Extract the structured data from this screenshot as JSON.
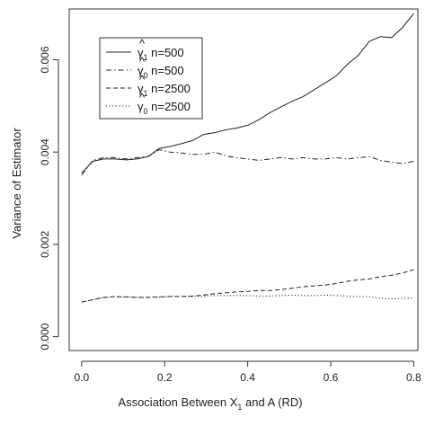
{
  "chart_data": {
    "type": "line",
    "xlabel": {
      "text": "Association Between X",
      "sub": "1",
      "tail": " and A (RD)"
    },
    "ylabel": "Variance of Estimator",
    "xlim": [
      -0.03,
      0.81
    ],
    "ylim": [
      -0.0003,
      0.0071
    ],
    "xticks": [
      0.0,
      0.2,
      0.4,
      0.6,
      0.8
    ],
    "xtick_labels": [
      "0.0",
      "0.2",
      "0.4",
      "0.6",
      "0.8"
    ],
    "yticks": [
      0.0,
      0.002,
      0.004,
      0.006
    ],
    "ytick_labels": [
      "0.000",
      "0.002",
      "0.004",
      "0.006"
    ],
    "grid": false,
    "legend_position": "top-left",
    "series": [
      {
        "name": "γ̂1 n=500",
        "legend": {
          "symbol": "γ",
          "sub": "1",
          "rest": " n=500"
        },
        "linestyle": "solid",
        "color": "#222222",
        "x": [
          0.0,
          0.027,
          0.053,
          0.08,
          0.107,
          0.133,
          0.16,
          0.187,
          0.213,
          0.24,
          0.267,
          0.293,
          0.32,
          0.347,
          0.373,
          0.4,
          0.427,
          0.453,
          0.48,
          0.507,
          0.533,
          0.56,
          0.587,
          0.613,
          0.64,
          0.667,
          0.693,
          0.72,
          0.747,
          0.773,
          0.8
        ],
        "values": [
          0.00355,
          0.0038,
          0.00385,
          0.00385,
          0.00383,
          0.00385,
          0.0039,
          0.00408,
          0.00412,
          0.00418,
          0.00425,
          0.00438,
          0.00442,
          0.00448,
          0.00452,
          0.00458,
          0.0047,
          0.00485,
          0.00498,
          0.0051,
          0.0052,
          0.00535,
          0.0055,
          0.00565,
          0.0059,
          0.0061,
          0.0064,
          0.0065,
          0.00648,
          0.0067,
          0.007
        ]
      },
      {
        "name": "γ̂0 n=500",
        "legend": {
          "symbol": "γ",
          "sub": "0",
          "rest": " n=500"
        },
        "linestyle": "dashdot",
        "color": "#222222",
        "x": [
          0.0,
          0.027,
          0.053,
          0.08,
          0.107,
          0.133,
          0.16,
          0.187,
          0.213,
          0.24,
          0.267,
          0.293,
          0.32,
          0.347,
          0.373,
          0.4,
          0.427,
          0.453,
          0.48,
          0.507,
          0.533,
          0.56,
          0.587,
          0.613,
          0.64,
          0.667,
          0.693,
          0.72,
          0.747,
          0.773,
          0.8
        ],
        "values": [
          0.0035,
          0.00382,
          0.00388,
          0.00388,
          0.00385,
          0.00388,
          0.0039,
          0.00405,
          0.004,
          0.00398,
          0.00395,
          0.00395,
          0.004,
          0.00392,
          0.00388,
          0.00385,
          0.00382,
          0.00385,
          0.00388,
          0.00385,
          0.00388,
          0.00385,
          0.00385,
          0.00388,
          0.00385,
          0.00388,
          0.0039,
          0.00382,
          0.00378,
          0.00375,
          0.0038
        ]
      },
      {
        "name": "γ̂1 n=2500",
        "legend": {
          "symbol": "γ",
          "sub": "1",
          "rest": " n=2500"
        },
        "linestyle": "dashed",
        "color": "#222222",
        "x": [
          0.0,
          0.027,
          0.053,
          0.08,
          0.107,
          0.133,
          0.16,
          0.187,
          0.213,
          0.24,
          0.267,
          0.293,
          0.32,
          0.347,
          0.373,
          0.4,
          0.427,
          0.453,
          0.48,
          0.507,
          0.533,
          0.56,
          0.587,
          0.613,
          0.64,
          0.667,
          0.693,
          0.72,
          0.747,
          0.773,
          0.8
        ],
        "values": [
          0.00075,
          0.0008,
          0.00085,
          0.00087,
          0.00086,
          0.00085,
          0.00085,
          0.00086,
          0.00087,
          0.00087,
          0.00088,
          0.0009,
          0.00093,
          0.00095,
          0.00097,
          0.00098,
          0.001,
          0.001,
          0.00102,
          0.00105,
          0.00108,
          0.0011,
          0.00112,
          0.00115,
          0.0012,
          0.00123,
          0.00125,
          0.0013,
          0.00133,
          0.00138,
          0.00145
        ]
      },
      {
        "name": "γ̂0 n=2500",
        "legend": {
          "symbol": "γ",
          "sub": "0",
          "rest": " n=2500"
        },
        "linestyle": "dotted",
        "color": "#222222",
        "x": [
          0.0,
          0.027,
          0.053,
          0.08,
          0.107,
          0.133,
          0.16,
          0.187,
          0.213,
          0.24,
          0.267,
          0.293,
          0.32,
          0.347,
          0.373,
          0.4,
          0.427,
          0.453,
          0.48,
          0.507,
          0.533,
          0.56,
          0.587,
          0.613,
          0.64,
          0.667,
          0.693,
          0.72,
          0.747,
          0.773,
          0.8
        ],
        "values": [
          0.00075,
          0.0008,
          0.00085,
          0.00086,
          0.00086,
          0.00085,
          0.00085,
          0.00086,
          0.00087,
          0.00087,
          0.00087,
          0.00088,
          0.00089,
          0.00089,
          0.00089,
          0.00089,
          0.00088,
          0.00088,
          0.00089,
          0.0009,
          0.00089,
          0.00089,
          0.0009,
          0.00089,
          0.00088,
          0.00087,
          0.00086,
          0.00083,
          0.00082,
          0.00083,
          0.00084
        ]
      }
    ]
  }
}
